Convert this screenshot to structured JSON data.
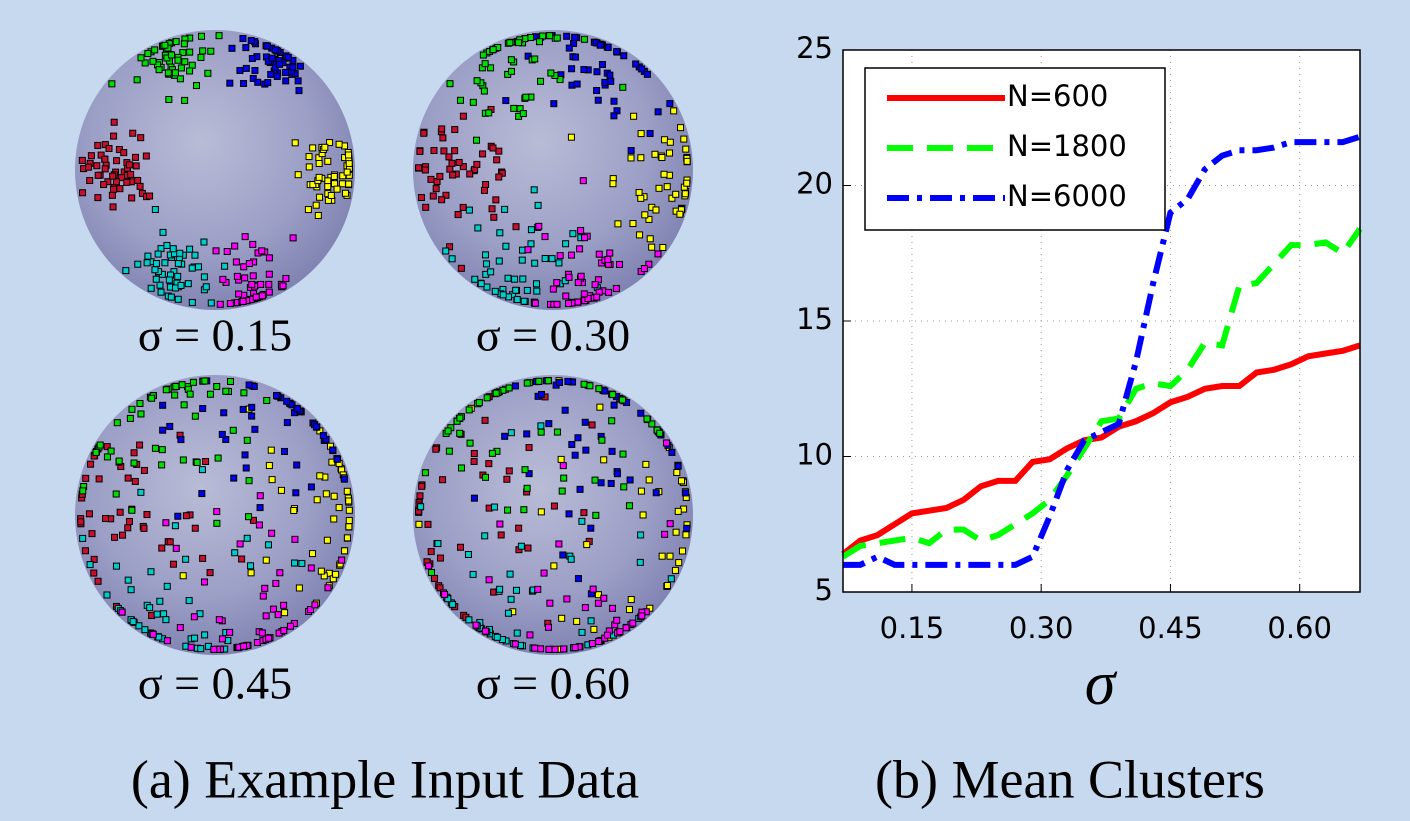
{
  "panels": [
    {
      "label": "σ = 0.15"
    },
    {
      "label": "σ = 0.30"
    },
    {
      "label": "σ = 0.45"
    },
    {
      "label": "σ = 0.60"
    }
  ],
  "captions": [
    "(a) Example Input Data",
    "(b) Mean Clusters"
  ],
  "chart_data": {
    "type": "line",
    "xlabel": "σ",
    "x": [
      0.07,
      0.09,
      0.11,
      0.13,
      0.15,
      0.17,
      0.19,
      0.21,
      0.23,
      0.25,
      0.27,
      0.29,
      0.31,
      0.33,
      0.35,
      0.37,
      0.39,
      0.41,
      0.43,
      0.45,
      0.47,
      0.49,
      0.51,
      0.53,
      0.55,
      0.57,
      0.59,
      0.61,
      0.63,
      0.65,
      0.67
    ],
    "series": [
      {
        "name": "N=600",
        "color": "#ff0000",
        "dash": "solid",
        "values": [
          6.4,
          6.9,
          7.1,
          7.5,
          7.9,
          8.0,
          8.1,
          8.4,
          8.9,
          9.1,
          9.1,
          9.8,
          9.9,
          10.3,
          10.6,
          10.7,
          11.1,
          11.3,
          11.6,
          12.0,
          12.2,
          12.5,
          12.6,
          12.6,
          13.1,
          13.2,
          13.4,
          13.7,
          13.8,
          13.9,
          14.1
        ]
      },
      {
        "name": "N=1800",
        "color": "#00ff00",
        "dash": "dashed",
        "values": [
          6.3,
          6.7,
          6.8,
          6.9,
          7.0,
          6.8,
          7.3,
          7.3,
          6.9,
          7.1,
          7.5,
          7.9,
          8.4,
          9.3,
          10.3,
          11.3,
          11.4,
          12.5,
          12.7,
          12.6,
          13.2,
          14.2,
          14.1,
          16.3,
          16.4,
          17.1,
          17.8,
          17.8,
          17.9,
          17.5,
          18.4
        ]
      },
      {
        "name": "N=6000",
        "color": "#0000ff",
        "dash": "dashdot",
        "values": [
          6.0,
          6.0,
          6.3,
          6.0,
          6.0,
          6.0,
          6.0,
          6.0,
          6.0,
          6.0,
          6.0,
          6.3,
          7.8,
          9.5,
          10.6,
          10.9,
          11.2,
          13.5,
          16.4,
          19.0,
          19.5,
          20.6,
          21.1,
          21.3,
          21.3,
          21.4,
          21.6,
          21.6,
          21.6,
          21.6,
          21.8
        ]
      }
    ],
    "xlim": [
      0.07,
      0.67
    ],
    "xticks": [
      {
        "value": 0.15,
        "label": "0.15"
      },
      {
        "value": 0.3,
        "label": "0.30"
      },
      {
        "value": 0.45,
        "label": "0.45"
      },
      {
        "value": 0.6,
        "label": "0.60"
      }
    ],
    "ylim": [
      5,
      25
    ],
    "yticks": [
      5,
      10,
      15,
      20,
      25
    ],
    "grid": true,
    "legend": "upper-left"
  }
}
